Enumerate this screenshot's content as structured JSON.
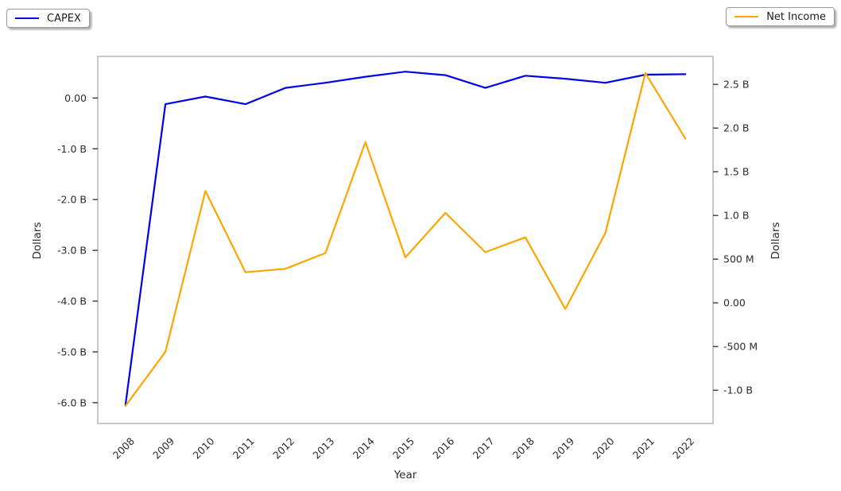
{
  "legends": [
    {
      "label": "CAPEX",
      "color": "#0000ee"
    },
    {
      "label": "Net Income",
      "color": "#ffa500"
    }
  ],
  "axes": {
    "left_label": "Dollars",
    "right_label": "Dollars",
    "x_label": "Year"
  },
  "chart_data": {
    "type": "line",
    "title": "",
    "xlabel": "Year",
    "grid": false,
    "legend_position": [
      "upper-left-outside",
      "upper-right-outside"
    ],
    "x": [
      "2008",
      "2009",
      "2010",
      "2011",
      "2012",
      "2013",
      "2014",
      "2015",
      "2016",
      "2017",
      "2018",
      "2019",
      "2020",
      "2021",
      "2022"
    ],
    "series": [
      {
        "name": "CAPEX",
        "yaxis": "left",
        "color": "#0000ee",
        "unit": "USD billions",
        "values_billion": [
          -6.05,
          -0.12,
          0.03,
          -0.12,
          0.2,
          0.3,
          0.42,
          0.52,
          0.45,
          0.2,
          0.44,
          0.38,
          0.3,
          0.46,
          0.47
        ]
      },
      {
        "name": "Net Income",
        "yaxis": "right",
        "color": "#ffa500",
        "unit": "USD billions",
        "values_billion": [
          -1.18,
          -0.56,
          1.28,
          0.35,
          0.39,
          0.57,
          1.84,
          0.52,
          1.03,
          0.58,
          0.75,
          -0.07,
          0.8,
          2.63,
          1.88
        ]
      }
    ],
    "left_axis": {
      "label": "Dollars",
      "range_billion": [
        -6.41,
        0.82
      ],
      "ticks": [
        {
          "v": 0,
          "label": "0.00"
        },
        {
          "v": -1,
          "label": "-1.0 B"
        },
        {
          "v": -2,
          "label": "-2.0 B"
        },
        {
          "v": -3,
          "label": "-3.0 B"
        },
        {
          "v": -4,
          "label": "-4.0 B"
        },
        {
          "v": -5,
          "label": "-5.0 B"
        },
        {
          "v": -6,
          "label": "-6.0 B"
        }
      ]
    },
    "right_axis": {
      "label": "Dollars",
      "range_billion": [
        -1.38,
        2.82
      ],
      "ticks": [
        {
          "v": 2.5,
          "label": "2.5 B"
        },
        {
          "v": 2.0,
          "label": "2.0 B"
        },
        {
          "v": 1.5,
          "label": "1.5 B"
        },
        {
          "v": 1.0,
          "label": "1.0 B"
        },
        {
          "v": 0.5,
          "label": "500 M"
        },
        {
          "v": 0,
          "label": "0.00"
        },
        {
          "v": -0.5,
          "label": "-500 M"
        },
        {
          "v": -1.0,
          "label": "-1.0 B"
        }
      ]
    }
  }
}
